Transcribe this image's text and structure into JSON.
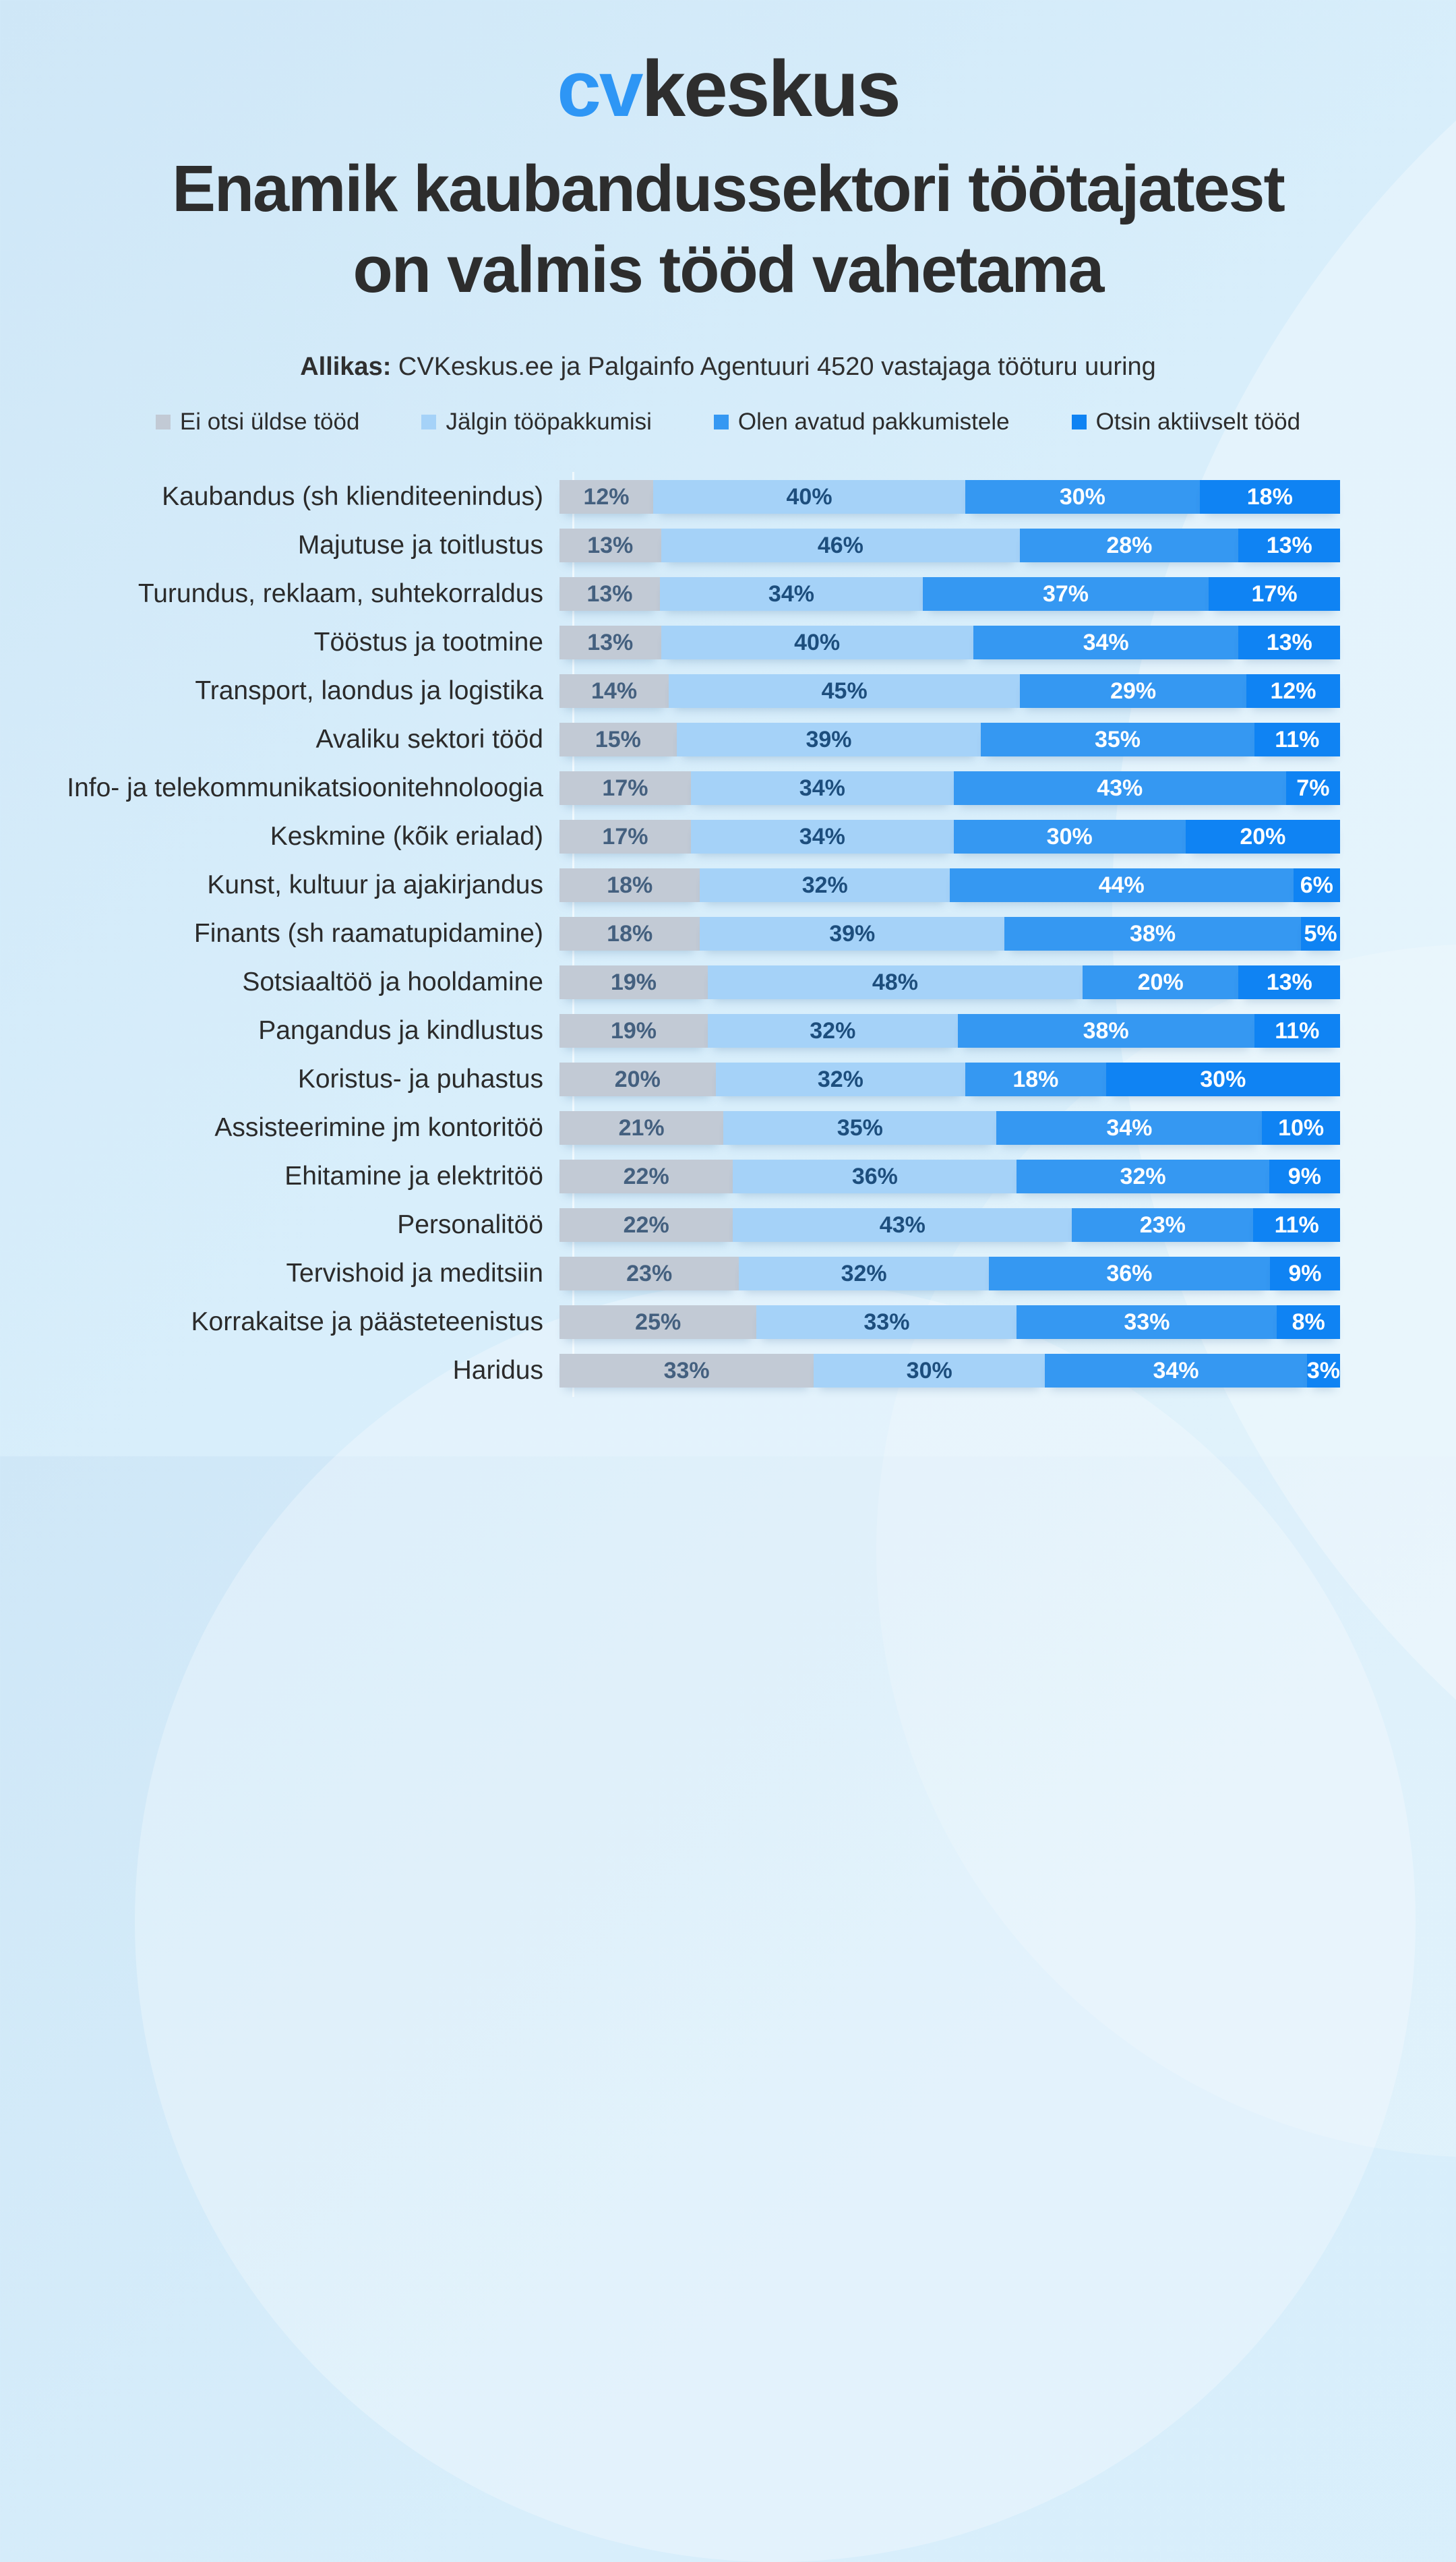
{
  "logo": {
    "part1": "cv",
    "part2": "keskus"
  },
  "title": {
    "line1": "Enamik kaubandussektori töötajatest",
    "line2": "on valmis tööd vahetama"
  },
  "source": {
    "label": "Allikas:",
    "text": " CVKeskus.ee ja Palgainfo Agentuuri 4520 vastajaga tööturu uuring"
  },
  "colors": {
    "background": "#d6ecf9",
    "logo_blue": "#2e96f5",
    "title_text": "#2d2d2d",
    "axis_line": "rgba(255,255,255,0.65)"
  },
  "legend": [
    {
      "label": "Ei otsi üldse tööd",
      "color": "#c2cad5"
    },
    {
      "label": "Jälgin tööpakkumisi",
      "color": "#a5d2f8"
    },
    {
      "label": "Olen avatud pakkumistele",
      "color": "#3598f2"
    },
    {
      "label": "Otsin aktiivselt tööd",
      "color": "#0f83f3"
    }
  ],
  "chart_data": {
    "type": "bar",
    "orientation": "horizontal",
    "stacked": true,
    "unit": "%",
    "value_labels_shown": true,
    "legend_position": "top",
    "grid": false,
    "categories": [
      "Kaubandus (sh klienditeenindus)",
      "Majutuse ja toitlustus",
      "Turundus, reklaam, suhtekorraldus",
      "Tööstus ja tootmine",
      "Transport, laondus ja logistika",
      "Avaliku sektori tööd",
      "Info- ja telekommunikatsioonitehnoloogia",
      "Keskmine (kõik erialad)",
      "Kunst, kultuur ja ajakirjandus",
      "Finants (sh raamatupidamine)",
      "Sotsiaaltöö ja hooldamine",
      "Pangandus ja kindlustus",
      "Koristus- ja puhastus",
      "Assisteerimine jm kontoritöö",
      "Ehitamine ja elektritöö",
      "Personalitöö",
      "Tervishoid ja meditsiin",
      "Korrakaitse ja päästeteenistus",
      "Haridus"
    ],
    "series": [
      {
        "name": "Ei otsi üldse tööd",
        "color": "#c2cad5",
        "label_color": "#44607f",
        "values": [
          12,
          13,
          13,
          13,
          14,
          15,
          17,
          17,
          18,
          18,
          19,
          19,
          20,
          21,
          22,
          22,
          23,
          25,
          33
        ]
      },
      {
        "name": "Jälgin tööpakkumisi",
        "color": "#a5d2f8",
        "label_color": "#1d4e7d",
        "values": [
          40,
          46,
          34,
          40,
          45,
          39,
          34,
          34,
          32,
          39,
          48,
          32,
          32,
          35,
          36,
          43,
          32,
          33,
          30
        ]
      },
      {
        "name": "Olen avatud pakkumistele",
        "color": "#3598f2",
        "label_color": "#ffffff",
        "values": [
          30,
          28,
          37,
          34,
          29,
          35,
          43,
          30,
          44,
          38,
          20,
          38,
          18,
          34,
          32,
          23,
          36,
          33,
          34
        ]
      },
      {
        "name": "Otsin aktiivselt tööd",
        "color": "#0f83f3",
        "label_color": "#ffffff",
        "values": [
          18,
          13,
          17,
          13,
          12,
          11,
          7,
          20,
          6,
          5,
          13,
          11,
          30,
          10,
          9,
          11,
          9,
          8,
          3
        ]
      }
    ]
  }
}
